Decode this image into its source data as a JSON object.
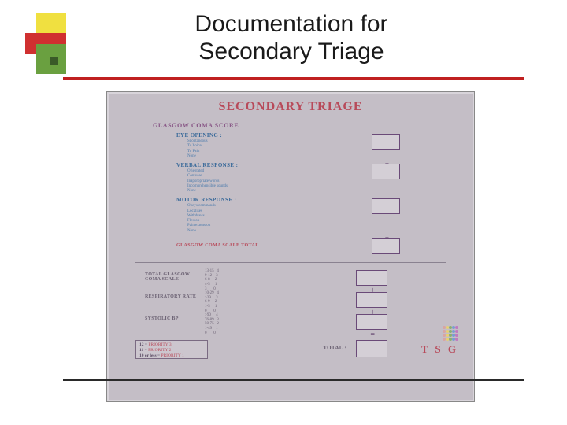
{
  "slide": {
    "title_line1": "Documentation for",
    "title_line2": "Secondary Triage"
  },
  "colors": {
    "blockYellow": "#f0e040",
    "blockRed": "#d03030",
    "blockGreen": "#6aa040",
    "ruleRed": "#c02020",
    "panelBg": "#c4bec6",
    "panelTitle": "#b84a5a",
    "gcsHeading": "#8a5a88",
    "gcsLabel": "#3a6a9a",
    "tsgLabel": "#6a6072"
  },
  "panel": {
    "title": "SECONDARY TRIAGE",
    "gcsHeading": "GLASGOW COMA SCORE",
    "gcsSections": [
      {
        "label": "EYE OPENING :",
        "opts": "Spontaneous\nTo Voice\nTo Pain\nNone",
        "op": "+"
      },
      {
        "label": "VERBAL RESPONSE :",
        "opts": "Orientated\nConfused\nInappropriate words\nIncomprehensible sounds\nNone",
        "op": "+"
      },
      {
        "label": "MOTOR RESPONSE :",
        "opts": "Obeys commands\nLocalises\nWithdraws\nFlexion\nPain extension\nNone",
        "op": "="
      }
    ],
    "gcsTotalLabel": "GLASGOW COMA SCALE TOTAL",
    "tsgRows": [
      {
        "label": "TOTAL GLASGOW COMA SCALE",
        "scale": "13-15   4\n9-12    3\n6-8     2\n4-5     1\n3       0",
        "op": "+"
      },
      {
        "label": "RESPIRATORY RATE",
        "scale": "10-29   4\n>29     3\n6-9     2\n1-5     1\n0       0",
        "op": "+"
      },
      {
        "label": "SYSTOLIC BP",
        "scale": ">90     4\n76-89   3\n50-75   2\n1-49    1\n0       0",
        "op": "="
      }
    ],
    "totalLabel": "TOTAL :",
    "key": [
      {
        "v": "12",
        "p": "PRIORITY 3"
      },
      {
        "v": "11",
        "p": "PRIORITY 2"
      },
      {
        "v": "10 or less",
        "p": "PRIORITY 1"
      }
    ],
    "tsgLogo": "T S G",
    "dotColors": [
      "#d8a4a4",
      "#e8d070",
      "#8ab070",
      "#7a9ed0",
      "#c07ac0"
    ]
  }
}
